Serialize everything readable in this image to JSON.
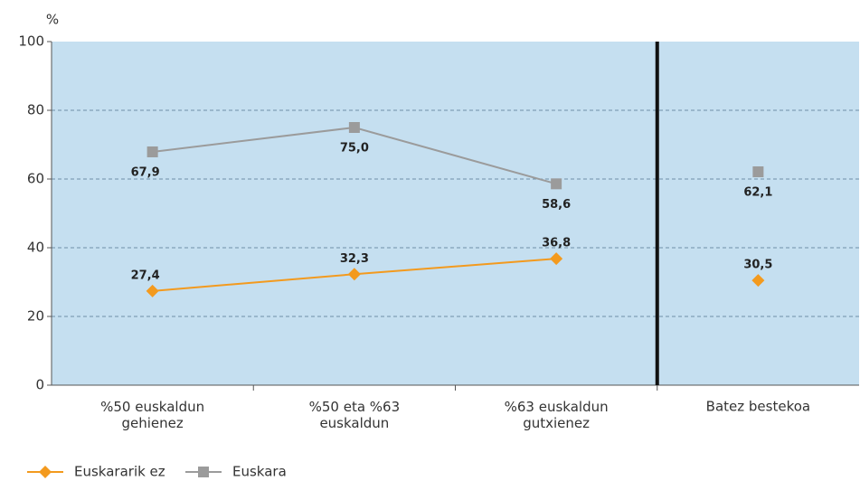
{
  "chart_data": {
    "type": "line",
    "y_label": "%",
    "categories": [
      "%50 euskaldun\ngehienez",
      "%50 eta %63\neuskaldun",
      "%63 euskaldun\ngutxienez",
      "Batez bestekoa"
    ],
    "separator_index": 3,
    "series": [
      {
        "name": "Euskararik ez",
        "color": "#f39a1e",
        "marker": "diamond",
        "values": [
          27.4,
          32.3,
          36.8,
          30.5
        ],
        "value_labels": [
          "27,4",
          "32,3",
          "36,8",
          "30,5"
        ]
      },
      {
        "name": "Euskara",
        "color": "#9b9b9b",
        "marker": "square",
        "values": [
          67.9,
          75.0,
          58.6,
          62.1
        ],
        "value_labels": [
          "67,9",
          "75,0",
          "58,6",
          "62,1"
        ]
      }
    ],
    "ylim": [
      0,
      100
    ],
    "yticks": [
      0,
      20,
      40,
      60,
      80,
      100
    ],
    "grid": true,
    "legend": "bottom-left"
  }
}
